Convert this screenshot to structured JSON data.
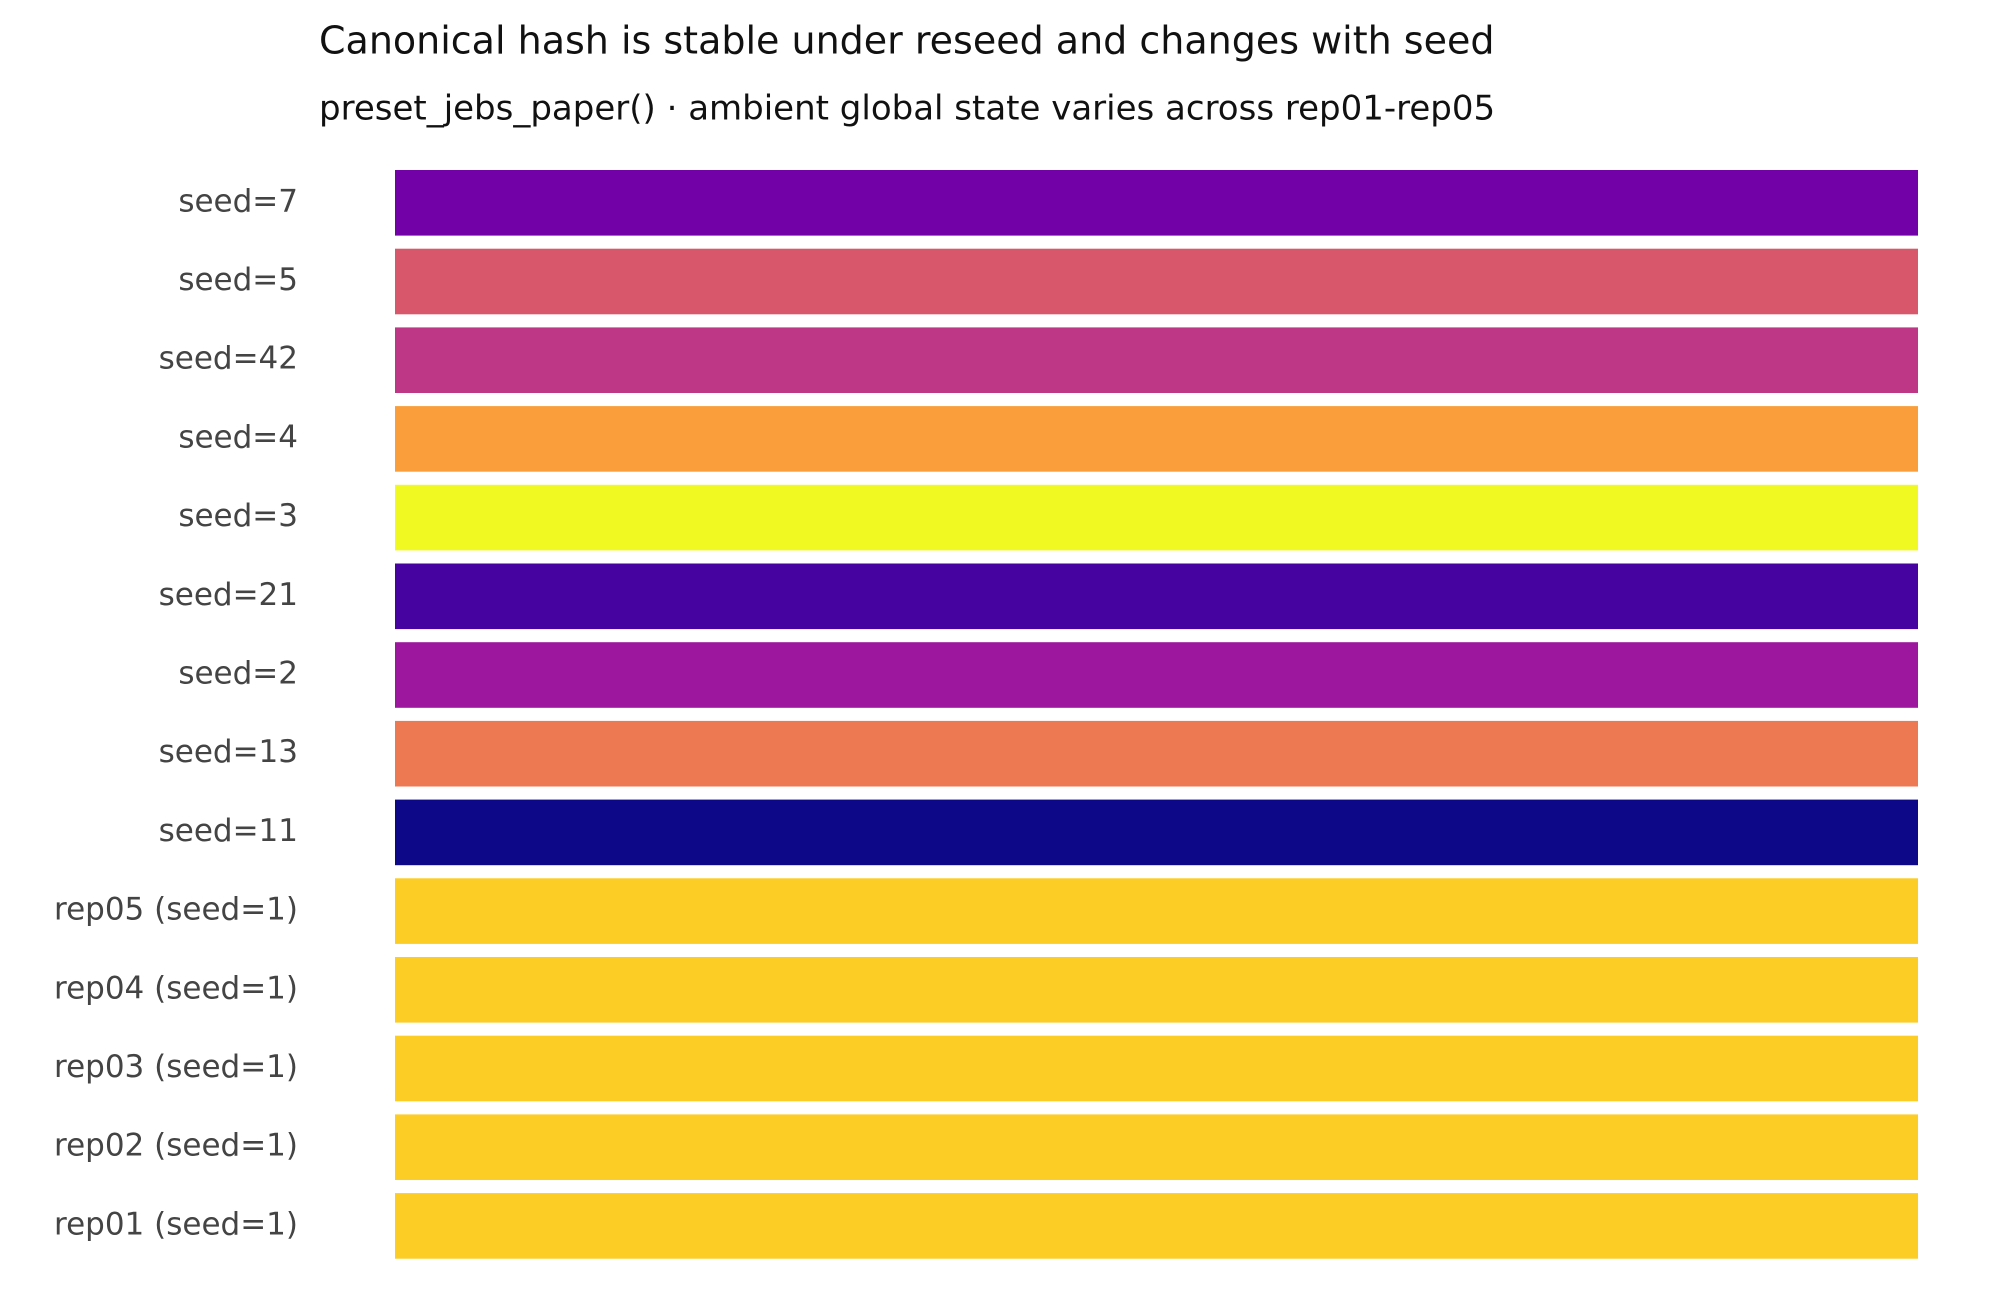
{
  "chart_data": {
    "type": "hashbar",
    "title": "Canonical hash is stable under reseed and changes with seed",
    "subtitle": "preset_jebs_paper() · ambient global state varies across rep01-rep05",
    "categories": [
      "seed=7",
      "seed=5",
      "seed=42",
      "seed=4",
      "seed=3",
      "seed=21",
      "seed=2",
      "seed=13",
      "seed=11",
      "rep05 (seed=1)",
      "rep04 (seed=1)",
      "rep03 (seed=1)",
      "rep02 (seed=1)",
      "rep01 (seed=1)"
    ],
    "colors": [
      "#7201a8",
      "#d8576b",
      "#bd3786",
      "#fa9e3b",
      "#f0f921",
      "#46039f",
      "#9c179e",
      "#ed7953",
      "#0d0887",
      "#fccd25",
      "#fccd25",
      "#fccd25",
      "#fccd25",
      "#fccd25"
    ]
  }
}
